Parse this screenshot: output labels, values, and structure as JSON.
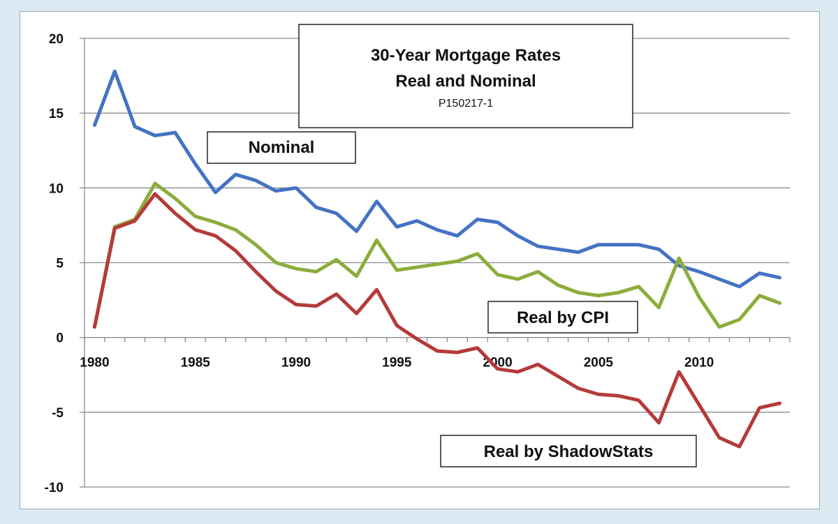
{
  "chart_data": {
    "type": "line",
    "title": "30-Year Mortgage Rates",
    "subtitle": "Real and Nominal",
    "chart_id": "P150217-1",
    "xlabel": "",
    "ylabel": "",
    "xlim": [
      1979.5,
      2014.5
    ],
    "ylim": [
      -10,
      20
    ],
    "x_ticks": [
      1980,
      1985,
      1990,
      1995,
      2000,
      2005,
      2010
    ],
    "y_ticks": [
      -10,
      -5,
      0,
      5,
      10,
      15,
      20
    ],
    "y_tick_labels": [
      "-10",
      "-5",
      "0",
      "5",
      "10",
      "15",
      "20"
    ],
    "x_tick_labels": [
      "1980",
      "1985",
      "1990",
      "1995",
      "2000",
      "2005",
      "2010"
    ],
    "grid": "horizontal",
    "x": [
      1980,
      1981,
      1982,
      1983,
      1984,
      1985,
      1986,
      1987,
      1988,
      1989,
      1990,
      1991,
      1992,
      1993,
      1994,
      1995,
      1996,
      1997,
      1998,
      1999,
      2000,
      2001,
      2002,
      2003,
      2004,
      2005,
      2006,
      2007,
      2008,
      2009,
      2010,
      2011,
      2012,
      2013,
      2014
    ],
    "series": [
      {
        "name": "Nominal",
        "color": "#4472c4",
        "label_color": "#1f3f8f",
        "values": [
          14.2,
          17.8,
          14.1,
          13.5,
          13.7,
          11.6,
          9.7,
          10.9,
          10.5,
          9.8,
          10.0,
          8.7,
          8.3,
          7.1,
          9.1,
          7.4,
          7.8,
          7.2,
          6.8,
          7.9,
          7.7,
          6.8,
          6.1,
          5.9,
          5.7,
          6.2,
          6.2,
          6.2,
          5.9,
          4.8,
          4.4,
          3.9,
          3.4,
          4.3,
          4.0
        ]
      },
      {
        "name": "Real by CPI",
        "color": "#8cac3c",
        "label_color": "#76a032",
        "values": [
          0.7,
          7.4,
          7.9,
          10.3,
          9.3,
          8.1,
          7.7,
          7.2,
          6.2,
          5.0,
          4.6,
          4.4,
          5.2,
          4.1,
          6.5,
          4.5,
          4.7,
          4.9,
          5.1,
          5.6,
          4.2,
          3.9,
          4.4,
          3.5,
          3.0,
          2.8,
          3.0,
          3.4,
          2.0,
          5.3,
          2.7,
          0.7,
          1.2,
          2.8,
          2.3
        ]
      },
      {
        "name": "Real by ShadowStats",
        "color": "#b53a3a",
        "label_color": "#c0282a",
        "values": [
          0.7,
          7.3,
          7.8,
          9.6,
          8.3,
          7.2,
          6.8,
          5.8,
          4.4,
          3.1,
          2.2,
          2.1,
          2.9,
          1.6,
          3.2,
          0.8,
          -0.1,
          -0.9,
          -1.0,
          -0.7,
          -2.1,
          -2.3,
          -1.8,
          -2.6,
          -3.4,
          -3.8,
          -3.9,
          -4.2,
          -5.7,
          -2.3,
          -4.5,
          -6.7,
          -7.3,
          -4.7,
          -4.4
        ]
      }
    ]
  }
}
